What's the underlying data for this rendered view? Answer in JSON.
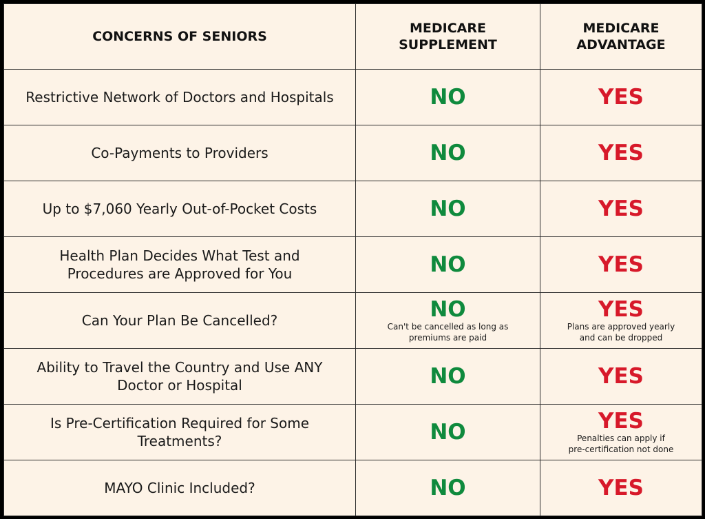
{
  "header": {
    "col1": "CONCERNS OF SENIORS",
    "col2": "MEDICARE\nSUPPLEMENT",
    "col3": "MEDICARE\nADVANTAGE"
  },
  "colors": {
    "no": "#0f8a3d",
    "yes": "#d7192a",
    "background": "#fdf3e7",
    "border": "#2b2b2b"
  },
  "rows": [
    {
      "concern": "Restrictive Network of Doctors and Hospitals",
      "supplement": {
        "answer": "NO",
        "note": ""
      },
      "advantage": {
        "answer": "YES",
        "note": ""
      }
    },
    {
      "concern": "Co-Payments to Providers",
      "supplement": {
        "answer": "NO",
        "note": ""
      },
      "advantage": {
        "answer": "YES",
        "note": ""
      }
    },
    {
      "concern": "Up to $7,060 Yearly Out-of-Pocket Costs",
      "supplement": {
        "answer": "NO",
        "note": ""
      },
      "advantage": {
        "answer": "YES",
        "note": ""
      }
    },
    {
      "concern": "Health Plan Decides What Test and\nProcedures are Approved for You",
      "supplement": {
        "answer": "NO",
        "note": ""
      },
      "advantage": {
        "answer": "YES",
        "note": ""
      }
    },
    {
      "concern": "Can Your Plan Be Cancelled?",
      "supplement": {
        "answer": "NO",
        "note": "Can't be cancelled as long as\npremiums are paid"
      },
      "advantage": {
        "answer": "YES",
        "note": "Plans are approved yearly\nand can be dropped"
      }
    },
    {
      "concern": "Ability to Travel the Country and Use ANY\nDoctor or Hospital",
      "supplement": {
        "answer": "NO",
        "note": ""
      },
      "advantage": {
        "answer": "YES",
        "note": ""
      }
    },
    {
      "concern": "Is Pre-Certification Required for Some\nTreatments?",
      "supplement": {
        "answer": "NO",
        "note": ""
      },
      "advantage": {
        "answer": "YES",
        "note": "Penalties can apply if\npre-certification not done"
      }
    },
    {
      "concern": "MAYO Clinic Included?",
      "supplement": {
        "answer": "NO",
        "note": ""
      },
      "advantage": {
        "answer": "YES",
        "note": ""
      }
    }
  ]
}
